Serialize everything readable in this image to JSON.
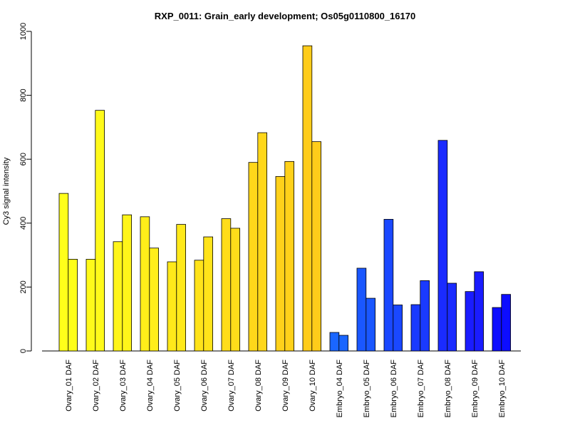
{
  "chart_data": {
    "type": "bar",
    "title": "RXP_0011: Grain_early development; Os05g0110800_16170",
    "ylabel": "Cy3 signal intensity",
    "xlabel": "",
    "ylim": [
      0,
      1000
    ],
    "yticks": [
      0,
      200,
      400,
      600,
      800,
      1000
    ],
    "categories": [
      "Ovary_01 DAF",
      "Ovary_02 DAF",
      "Ovary_03 DAF",
      "Ovary_04 DAF",
      "Ovary_05 DAF",
      "Ovary_06 DAF",
      "Ovary_07 DAF",
      "Ovary_08 DAF",
      "Ovary_09 DAF",
      "Ovary_10 DAF",
      "Embryo_04 DAF",
      "Embryo_05 DAF",
      "Embryo_06 DAF",
      "Embryo_07 DAF",
      "Embryo_08 DAF",
      "Embryo_09 DAF",
      "Embryo_10 DAF"
    ],
    "series": [
      {
        "values": [
          493,
          287,
          342,
          420,
          279,
          284,
          414,
          590,
          546,
          955,
          58,
          259,
          412,
          145,
          659,
          186,
          136
        ]
      },
      {
        "values": [
          287,
          753,
          426,
          322,
          396,
          357,
          384,
          683,
          593,
          655,
          49,
          165,
          144,
          220,
          212,
          248,
          177
        ]
      }
    ],
    "colors": [
      "#FFFF1A",
      "#FFFA1A",
      "#FFF51A",
      "#FFEE1A",
      "#FFE91A",
      "#FFE31A",
      "#FFDD1A",
      "#FFD71A",
      "#FFD11A",
      "#FFCC1A",
      "#1A66FF",
      "#1A57FF",
      "#1A48FF",
      "#1A3AFF",
      "#1A2BFF",
      "#1A1CFF",
      "#0D0DFF"
    ],
    "grid": false,
    "legend": "none"
  }
}
